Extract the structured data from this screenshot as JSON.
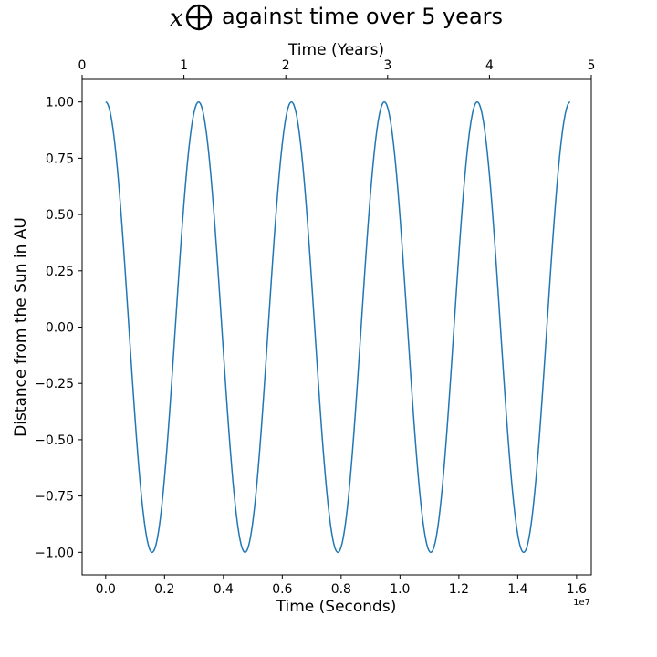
{
  "chart_data": {
    "type": "line",
    "title_symbol": "x",
    "title_text": "against time over 5 years",
    "xlabel": "Time (Seconds)",
    "x_offset_label": "1e7",
    "xlabel_top": "Time (Years)",
    "ylabel": "Distance from the Sun in AU",
    "xlim": [
      -0.08,
      1.65
    ],
    "ylim": [
      -1.1,
      1.1
    ],
    "xlim_top_years": [
      0,
      5
    ],
    "x_ticks": [
      "0.0",
      "0.2",
      "0.4",
      "0.6",
      "0.8",
      "1.0",
      "1.2",
      "1.4",
      "1.6"
    ],
    "x_tick_values": [
      0.0,
      0.2,
      0.4,
      0.6,
      0.8,
      1.0,
      1.2,
      1.4,
      1.6
    ],
    "x_top_ticks": [
      "0",
      "1",
      "2",
      "3",
      "4",
      "5"
    ],
    "x_top_tick_values": [
      0,
      1,
      2,
      3,
      4,
      5
    ],
    "y_ticks": [
      "1.00",
      "0.75",
      "0.50",
      "0.25",
      "0.00",
      "−0.25",
      "−0.50",
      "−0.75",
      "−1.00"
    ],
    "y_tick_values": [
      1.0,
      0.75,
      0.5,
      0.25,
      0.0,
      -0.25,
      -0.5,
      -0.75,
      -1.0
    ],
    "grid": false,
    "series": [
      {
        "color": "#1f77b4",
        "function": "cos",
        "amplitude": 1.0,
        "period_1e7_s": 0.3156,
        "x_start_1e7_s": 0.0,
        "x_end_1e7_s": 1.578
      }
    ]
  }
}
